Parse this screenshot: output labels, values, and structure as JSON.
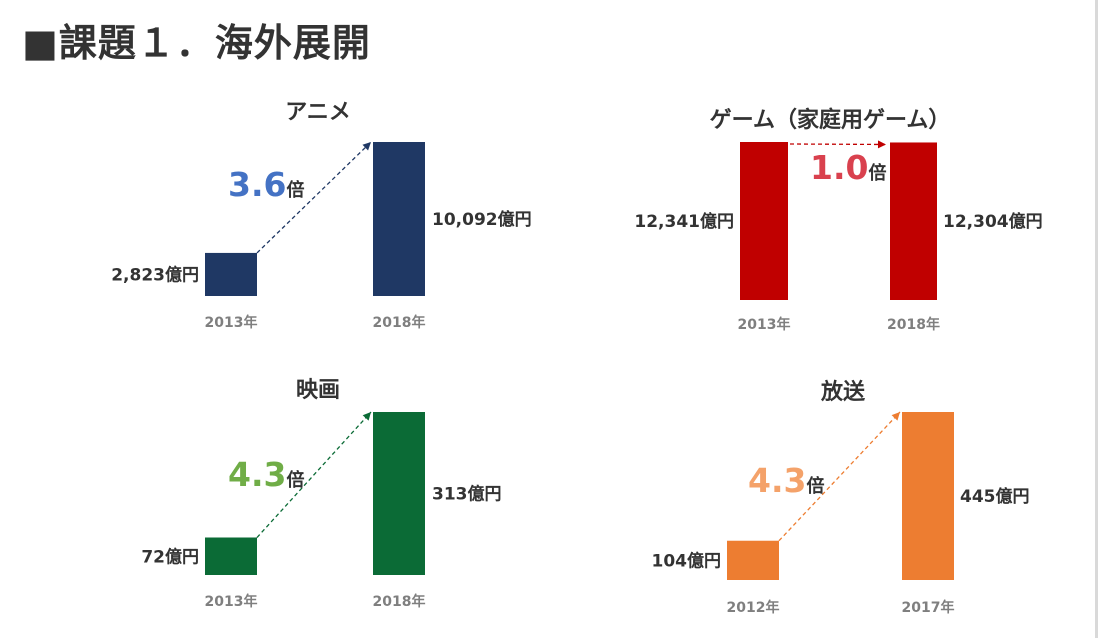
{
  "page": {
    "title": "■課題１．海外展開"
  },
  "chart_data": [
    {
      "type": "bar",
      "title": "アニメ",
      "categories": [
        "2013年",
        "2018年"
      ],
      "values": [
        2823,
        10092
      ],
      "value_labels": [
        "2,823億円",
        "10,092億円"
      ],
      "multiplier": {
        "number": "3.6",
        "suffix": "倍"
      },
      "color": "#1f3864",
      "accent": "#4472c4"
    },
    {
      "type": "bar",
      "title": "ゲーム（家庭用ゲーム）",
      "categories": [
        "2013年",
        "2018年"
      ],
      "values": [
        12341,
        12304
      ],
      "value_labels": [
        "12,341億円",
        "12,304億円"
      ],
      "multiplier": {
        "number": "1.0",
        "suffix": "倍"
      },
      "color": "#c00000",
      "accent": "#d9414e"
    },
    {
      "type": "bar",
      "title": "映画",
      "categories": [
        "2013年",
        "2018年"
      ],
      "values": [
        72,
        313
      ],
      "value_labels": [
        "72億円",
        "313億円"
      ],
      "multiplier": {
        "number": "4.3",
        "suffix": "倍"
      },
      "color": "#0b6b36",
      "accent": "#70ad47"
    },
    {
      "type": "bar",
      "title": "放送",
      "categories": [
        "2012年",
        "2017年"
      ],
      "values": [
        104,
        445
      ],
      "value_labels": [
        "104億円",
        "445億円"
      ],
      "multiplier": {
        "number": "4.3",
        "suffix": "倍"
      },
      "color": "#ed7d31",
      "accent": "#f4a26a"
    }
  ]
}
